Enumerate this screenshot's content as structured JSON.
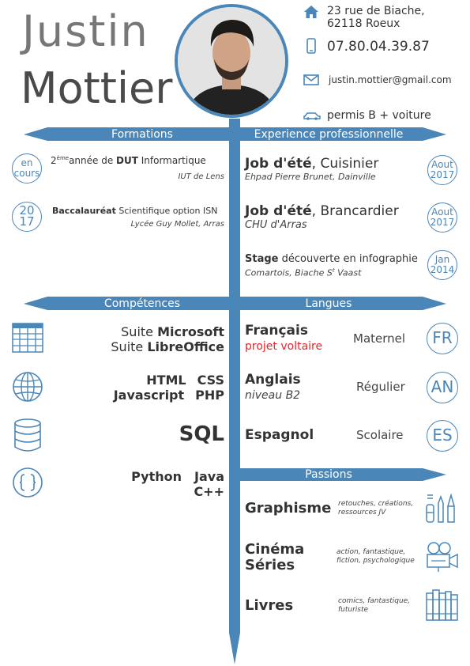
{
  "header": {
    "first_name": "Justin",
    "last_name": "Mottier"
  },
  "contact": {
    "address_line1": "23 rue de Biache,",
    "address_line2": "62118 Roeux",
    "phone": "07.80.04.39.87",
    "email": "justin.mottier@gmail.com",
    "license": "permis B + voiture"
  },
  "sections": {
    "formations": "Formations",
    "experience": "Experience professionnelle",
    "competences": "Compétences",
    "langues": "Langues",
    "passions": "Passions"
  },
  "formations": [
    {
      "badge_line1": "en",
      "badge_line2": "cours",
      "prefix": "2",
      "sup": "ème",
      "text_before": "année de ",
      "bold": "DUT",
      "text_after": " Informartique",
      "sub": "IUT de Lens"
    },
    {
      "badge_line1": "20",
      "badge_line2": "17",
      "bold": "Baccalauréat",
      "text_after": " Scientifique option ISN",
      "sub": "Lycée Guy Mollet, Arras"
    }
  ],
  "experience": [
    {
      "title_bold": "Job d'été",
      "title_rest": ", Cuisinier",
      "sub": "Ehpad Pierre Brunet, Dainville",
      "badge_line1": "Aout",
      "badge_line2": "2017"
    },
    {
      "title_bold": "Job d'été",
      "title_rest": ", Brancardier",
      "sub": "CHU d'Arras",
      "badge_line1": "Aout",
      "badge_line2": "2017"
    },
    {
      "title_bold": "Stage",
      "title_rest": " découverte en infographie",
      "sub_a": "Comartois, Biache S",
      "sub_sup": "t",
      "sub_b": " Vaast",
      "badge_line1": "Jan",
      "badge_line2": "2014"
    }
  ],
  "competences": {
    "office_1_pre": "Suite ",
    "office_1_bold": "Microsoft",
    "office_2_pre": "Suite ",
    "office_2_bold": "LibreOffice",
    "web_1": "HTML",
    "web_2": "CSS",
    "web_3": "Javascript",
    "web_4": "PHP",
    "db": "SQL",
    "code_1": "Python",
    "code_2": "Java",
    "code_3": "C++"
  },
  "langues": [
    {
      "name": "Français",
      "sub": "projet voltaire",
      "sub_color": "#e8262b",
      "level": "Maternel",
      "code": "FR"
    },
    {
      "name": "Anglais",
      "sub": "niveau B2",
      "sub_color": "#444444",
      "level": "Régulier",
      "code": "AN"
    },
    {
      "name": "Espagnol",
      "sub": "",
      "level": "Scolaire",
      "code": "ES"
    }
  ],
  "passions": [
    {
      "name_1": "Graphisme",
      "name_2": "",
      "desc_1": "retouches, créations,",
      "desc_2": "ressources JV",
      "icon": "art-tools-icon"
    },
    {
      "name_1": "Cinéma",
      "name_2": "Séries",
      "desc_1": "action, fantastique,",
      "desc_2": "fiction, psychologique",
      "icon": "film-camera-icon"
    },
    {
      "name_1": "Livres",
      "name_2": "",
      "desc_1": "comics, fantastique,",
      "desc_2": "futuriste",
      "icon": "books-icon"
    }
  ],
  "colors": {
    "accent": "#4a86b8",
    "text": "#333333",
    "highlight": "#e8262b"
  }
}
